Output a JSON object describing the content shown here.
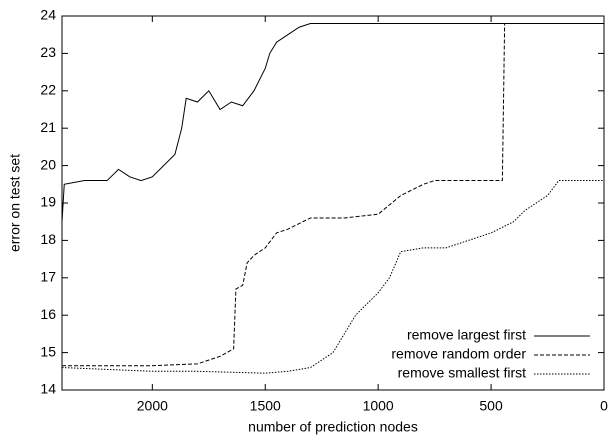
{
  "chart_data": {
    "type": "line",
    "xlabel": "number of prediction nodes",
    "ylabel": "error on test set",
    "xlim": [
      2400,
      0
    ],
    "xticks": [
      2000,
      1500,
      1000,
      500,
      0
    ],
    "ylim": [
      14,
      24
    ],
    "yticks": [
      14,
      15,
      16,
      17,
      18,
      19,
      20,
      21,
      22,
      23,
      24
    ],
    "legend": "lower right",
    "series": [
      {
        "name": "remove largest first",
        "color": "#000000",
        "dash": "solid",
        "x": [
          2400,
          2390,
          2300,
          2200,
          2150,
          2100,
          2050,
          2000,
          1950,
          1900,
          1870,
          1850,
          1800,
          1750,
          1700,
          1650,
          1600,
          1550,
          1500,
          1480,
          1450,
          1400,
          1350,
          1300,
          1000,
          500,
          0
        ],
        "values": [
          18.5,
          19.5,
          19.6,
          19.6,
          19.9,
          19.7,
          19.6,
          19.7,
          20.0,
          20.3,
          21.0,
          21.8,
          21.7,
          22.0,
          21.5,
          21.7,
          21.6,
          22.0,
          22.6,
          23.0,
          23.3,
          23.5,
          23.7,
          23.8,
          23.8,
          23.8,
          23.8
        ]
      },
      {
        "name": "remove random order",
        "color": "#000000",
        "dash": "dashed",
        "x": [
          2400,
          2200,
          2000,
          1800,
          1700,
          1640,
          1630,
          1600,
          1580,
          1550,
          1500,
          1450,
          1400,
          1300,
          1150,
          1000,
          900,
          800,
          750,
          600,
          450,
          440,
          200,
          0
        ],
        "values": [
          14.65,
          14.65,
          14.65,
          14.7,
          14.9,
          15.1,
          16.7,
          16.8,
          17.4,
          17.6,
          17.8,
          18.2,
          18.3,
          18.6,
          18.6,
          18.7,
          19.2,
          19.5,
          19.6,
          19.6,
          19.6,
          23.8,
          23.8,
          23.8
        ]
      },
      {
        "name": "remove smallest first",
        "color": "#000000",
        "dash": "dotted",
        "x": [
          2400,
          2200,
          2000,
          1800,
          1500,
          1400,
          1300,
          1200,
          1100,
          1000,
          950,
          900,
          800,
          700,
          600,
          500,
          400,
          350,
          250,
          200,
          100,
          0
        ],
        "values": [
          14.6,
          14.55,
          14.5,
          14.5,
          14.45,
          14.5,
          14.6,
          15.0,
          16.0,
          16.6,
          17.0,
          17.7,
          17.8,
          17.8,
          18.0,
          18.2,
          18.5,
          18.8,
          19.2,
          19.6,
          19.6,
          19.6
        ]
      }
    ]
  }
}
